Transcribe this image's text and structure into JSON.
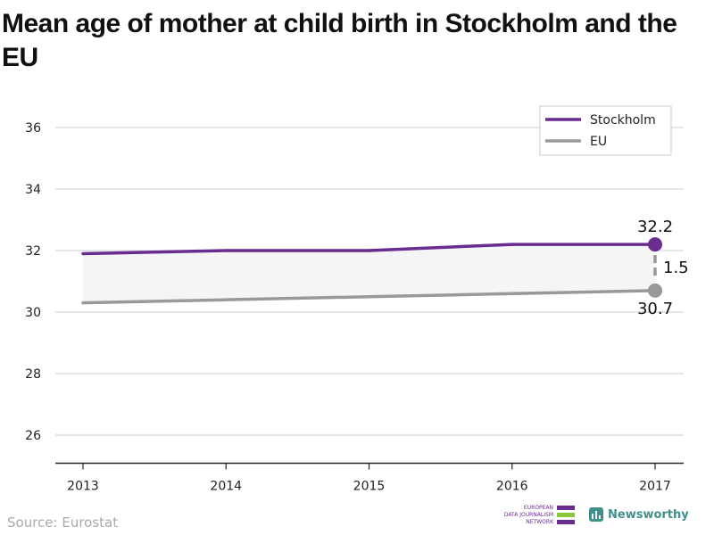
{
  "chart_data": {
    "type": "line",
    "title": "Mean age of mother at child birth in Stockholm and the EU",
    "x": [
      "2013",
      "2014",
      "2015",
      "2016",
      "2017"
    ],
    "series": [
      {
        "name": "Stockholm",
        "color": "#6a2c8f",
        "values": [
          31.9,
          32.0,
          32.0,
          32.2,
          32.2
        ]
      },
      {
        "name": "EU",
        "color": "#999999",
        "values": [
          30.3,
          30.4,
          30.5,
          30.6,
          30.7
        ]
      }
    ],
    "ylim": [
      25,
      37
    ],
    "yticks": [
      26,
      28,
      30,
      32,
      34,
      36
    ],
    "grid": true,
    "legend": "top-right",
    "annotations": {
      "stockholm_last": "32.2",
      "eu_last": "30.7",
      "difference": "1.5"
    }
  },
  "footer": {
    "source": "Source: Eurostat",
    "ejn_lines": [
      "EUROPEAN",
      "DATA JOURNALISM",
      "NETWORK"
    ],
    "ejn_colors": [
      "#6a2c8f",
      "#8cc63f",
      "#6a2c8f"
    ],
    "brand": "Newsworthy",
    "brand_icon": "bar-chart-icon"
  }
}
